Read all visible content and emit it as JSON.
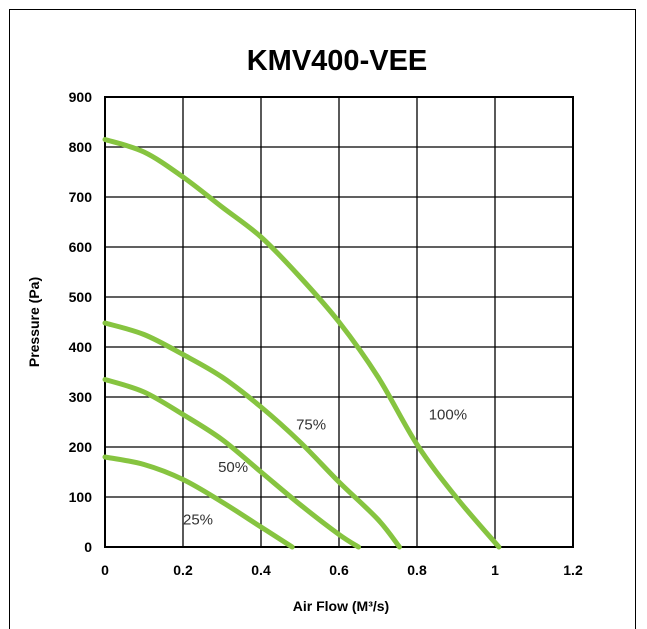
{
  "chart_data": {
    "type": "line",
    "title": "KMV400-VEE",
    "xlabel": "Air Flow (M³/s)",
    "ylabel": "Pressure (Pa)",
    "xlim": [
      0,
      1.2
    ],
    "ylim": [
      0,
      900
    ],
    "x_ticks": [
      "0",
      "0.2",
      "0.4",
      "0.6",
      "0.8",
      "1",
      "1.2"
    ],
    "y_ticks": [
      "0",
      "100",
      "200",
      "300",
      "400",
      "500",
      "600",
      "700",
      "800",
      "900"
    ],
    "grid": true,
    "line_color": "#86c440",
    "series": [
      {
        "name": "100%",
        "label_at": [
          0.83,
          255
        ],
        "points": [
          [
            0,
            815
          ],
          [
            0.1,
            790
          ],
          [
            0.2,
            740
          ],
          [
            0.3,
            680
          ],
          [
            0.4,
            620
          ],
          [
            0.5,
            540
          ],
          [
            0.6,
            450
          ],
          [
            0.7,
            340
          ],
          [
            0.8,
            205
          ],
          [
            0.9,
            100
          ],
          [
            1.01,
            0
          ]
        ]
      },
      {
        "name": "75%",
        "label_at": [
          0.49,
          235
        ],
        "points": [
          [
            0,
            448
          ],
          [
            0.1,
            425
          ],
          [
            0.2,
            385
          ],
          [
            0.3,
            340
          ],
          [
            0.4,
            280
          ],
          [
            0.5,
            210
          ],
          [
            0.6,
            130
          ],
          [
            0.7,
            55
          ],
          [
            0.755,
            0
          ]
        ]
      },
      {
        "name": "50%",
        "label_at": [
          0.29,
          150
        ],
        "points": [
          [
            0,
            335
          ],
          [
            0.1,
            310
          ],
          [
            0.2,
            265
          ],
          [
            0.3,
            215
          ],
          [
            0.4,
            150
          ],
          [
            0.5,
            85
          ],
          [
            0.6,
            25
          ],
          [
            0.65,
            0
          ]
        ]
      },
      {
        "name": "25%",
        "label_at": [
          0.2,
          45
        ],
        "points": [
          [
            0,
            180
          ],
          [
            0.1,
            165
          ],
          [
            0.2,
            135
          ],
          [
            0.3,
            90
          ],
          [
            0.4,
            40
          ],
          [
            0.48,
            0
          ]
        ]
      }
    ]
  }
}
